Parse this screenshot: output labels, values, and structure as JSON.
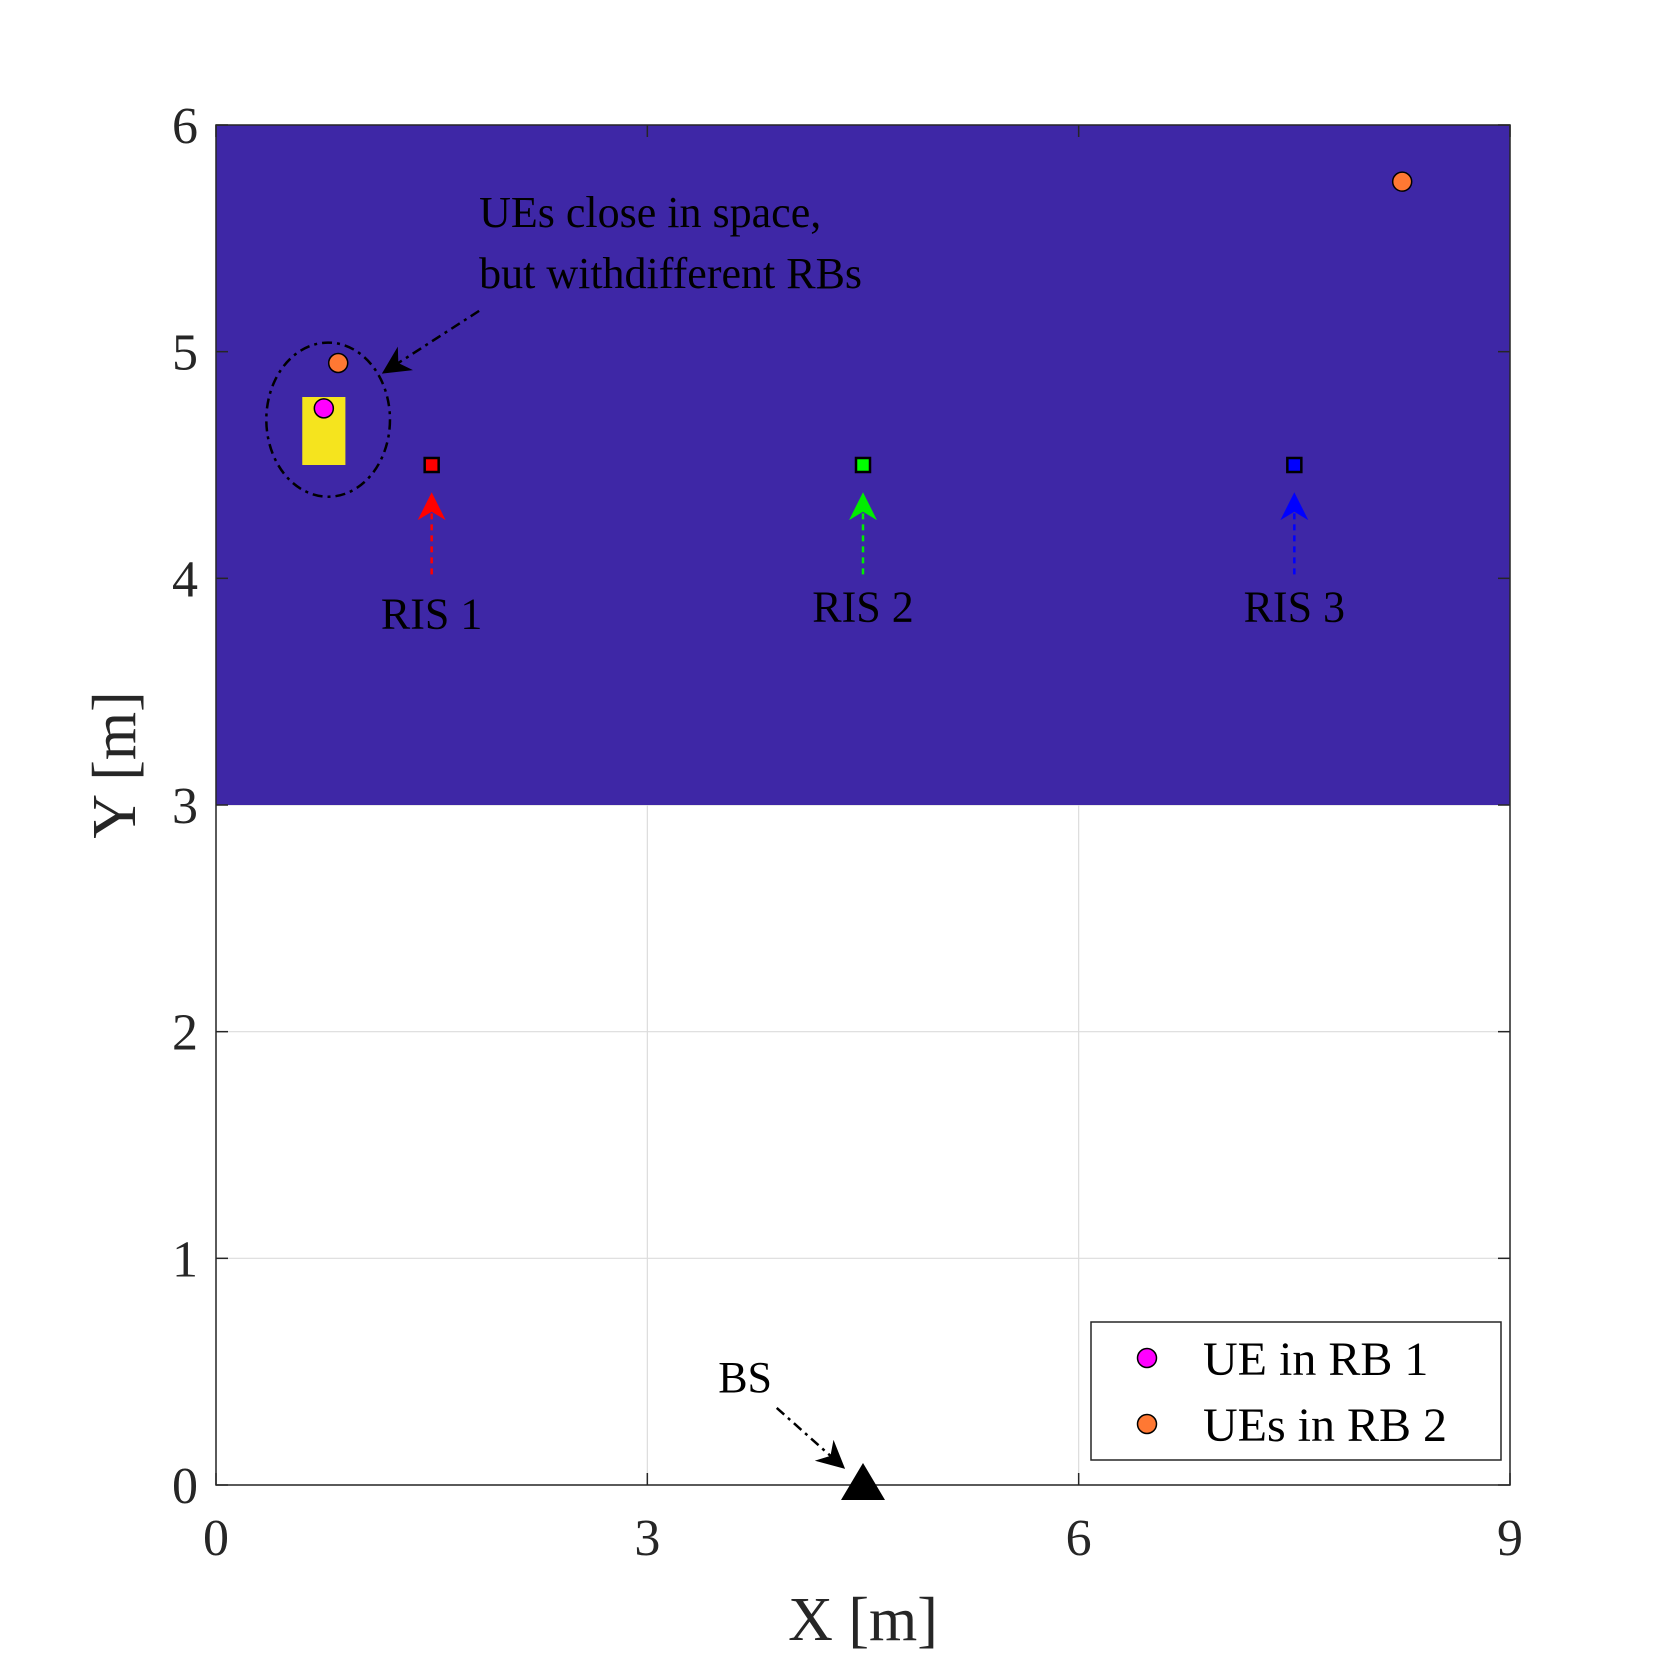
{
  "chart_data": {
    "type": "scatter",
    "xlabel": "X [m]",
    "ylabel": "Y [m]",
    "xlim": [
      0,
      9
    ],
    "ylim": [
      0,
      6
    ],
    "xticks": [
      "0",
      "3",
      "6",
      "9"
    ],
    "yticks": [
      "0",
      "1",
      "2",
      "3",
      "4",
      "5",
      "6"
    ],
    "grid": true,
    "legend_position": "bottom-right",
    "regions": [
      {
        "x": [
          0,
          9
        ],
        "y": [
          3,
          6
        ],
        "color": "#3e27a6"
      },
      {
        "x": [
          0.6,
          0.9
        ],
        "y": [
          4.5,
          4.8
        ],
        "color": "#f5e41e"
      }
    ],
    "series": [
      {
        "name": "UE in RB 1",
        "marker": "circle",
        "color": "#ff00ff",
        "points": [
          [
            0.75,
            4.75
          ]
        ]
      },
      {
        "name": "UEs in RB 2",
        "marker": "circle",
        "color": "#ff7833",
        "points": [
          [
            0.85,
            4.95
          ],
          [
            8.25,
            5.75
          ]
        ]
      }
    ],
    "ris": [
      {
        "label": "RIS 1",
        "x": 1.5,
        "y": 4.5,
        "color": "#ff0000",
        "arrow_color": "#ff0000",
        "label_y": 3.85
      },
      {
        "label": "RIS 2",
        "x": 4.5,
        "y": 4.5,
        "color": "#00ff00",
        "arrow_color": "#00ee00",
        "label_y": 3.88
      },
      {
        "label": "RIS 3",
        "x": 7.5,
        "y": 4.5,
        "color": "#0000ff",
        "arrow_color": "#0000ff",
        "label_y": 3.88
      }
    ],
    "bs": {
      "label": "BS",
      "x": 4.5,
      "y": 0.0,
      "color": "#000000"
    },
    "annotation": {
      "lines": [
        "UEs close in space,",
        "but withdifferent RBs"
      ],
      "text_x": 1.83,
      "text_y": [
        5.55,
        5.28
      ],
      "ellipse": {
        "cx": 0.78,
        "cy": 4.7,
        "rx": 0.43,
        "ry": 0.34
      }
    },
    "colors": {
      "axis": "#262626",
      "grid": "#dcdcdc"
    }
  }
}
